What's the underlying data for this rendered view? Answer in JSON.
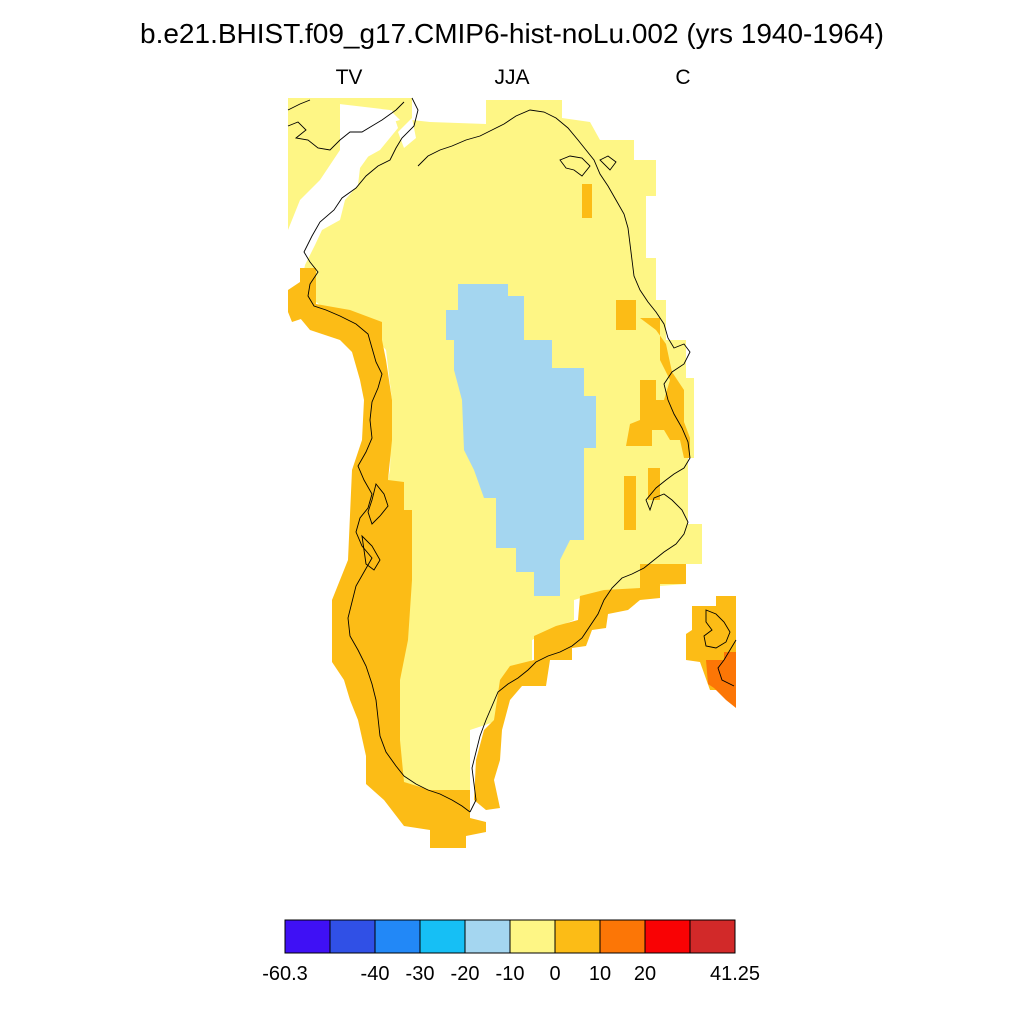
{
  "title": "b.e21.BHIST.f09_g17.CMIP6-hist-noLu.002 (yrs 1940-1964)",
  "subtitles": {
    "left": "TV",
    "center": "JJA",
    "right": "C"
  },
  "colorbar": {
    "colors": [
      "#3f10f5",
      "#3050e6",
      "#2288f7",
      "#16bff5",
      "#a4d6f0",
      "#fef685",
      "#fcbc16",
      "#fc7606",
      "#f90204",
      "#d22929"
    ],
    "labels": [
      "-60.3",
      "-40",
      "-30",
      "-20",
      "-10",
      "0",
      "10",
      "20",
      "41.25"
    ],
    "label_boundaries": [
      0,
      2,
      3,
      4,
      5,
      6,
      7,
      8,
      10
    ]
  },
  "map": {
    "region": "Greenland",
    "field_colors": {
      "cool": "#a4d6f0",
      "near_zero": "#fef685",
      "warm": "#fcbc16",
      "hot": "#fc7606"
    }
  }
}
